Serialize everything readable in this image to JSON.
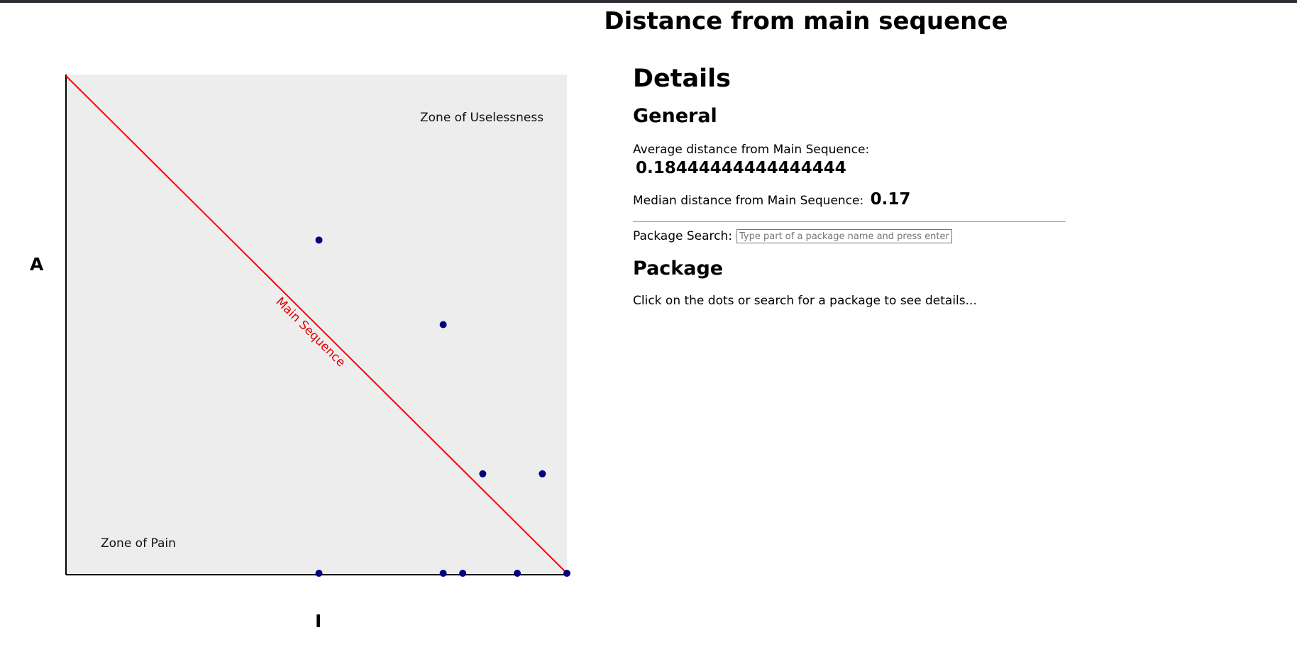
{
  "page": {
    "title": "Distance from main sequence"
  },
  "chart_data": {
    "type": "scatter",
    "title": "",
    "xlabel": "I",
    "ylabel": "A",
    "xlim": [
      0,
      1
    ],
    "ylim": [
      0,
      1
    ],
    "grid": false,
    "main_sequence_label": "Main Sequence",
    "zones": {
      "uselessness": "Zone of Uselessness",
      "pain": "Zone of Pain"
    },
    "colors": {
      "points": "#000080",
      "main_sequence": "#ff0000",
      "background": "#ededed"
    },
    "points": [
      {
        "x": 0.505,
        "y": 0.67
      },
      {
        "x": 0.753,
        "y": 0.5
      },
      {
        "x": 0.832,
        "y": 0.2
      },
      {
        "x": 0.951,
        "y": 0.2
      },
      {
        "x": 0.505,
        "y": 0.0
      },
      {
        "x": 0.753,
        "y": 0.0
      },
      {
        "x": 0.792,
        "y": 0.0
      },
      {
        "x": 0.901,
        "y": 0.0
      },
      {
        "x": 1.0,
        "y": 0.0
      }
    ]
  },
  "details": {
    "heading": "Details",
    "general_heading": "General",
    "average_label": "Average distance from Main Sequence:",
    "average_value": "0.18444444444444444",
    "median_label": "Median distance from Main Sequence:",
    "median_value": "0.17",
    "search_label": "Package Search:",
    "search_placeholder": "Type part of a package name and press enter...",
    "package_heading": "Package",
    "package_hint": "Click on the dots or search for a package to see details..."
  }
}
